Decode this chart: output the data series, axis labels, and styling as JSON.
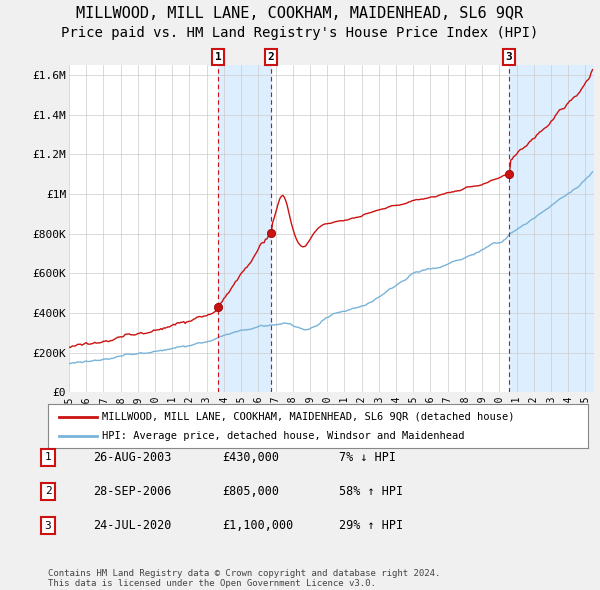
{
  "title": "MILLWOOD, MILL LANE, COOKHAM, MAIDENHEAD, SL6 9QR",
  "subtitle": "Price paid vs. HM Land Registry's House Price Index (HPI)",
  "ylabel_ticks": [
    "£0",
    "£200K",
    "£400K",
    "£600K",
    "£800K",
    "£1M",
    "£1.2M",
    "£1.4M",
    "£1.6M"
  ],
  "ytick_values": [
    0,
    200000,
    400000,
    600000,
    800000,
    1000000,
    1200000,
    1400000,
    1600000
  ],
  "ylim": [
    0,
    1650000
  ],
  "xlim_start": 1995.0,
  "xlim_end": 2025.5,
  "sale_dates": [
    2003.65,
    2006.74,
    2020.55
  ],
  "sale_prices": [
    430000,
    805000,
    1100000
  ],
  "sale_labels": [
    "1",
    "2",
    "3"
  ],
  "hpi_color": "#7ab3d8",
  "price_color": "#cc1111",
  "shade_color": "#ddeeff",
  "legend_price_label": "MILLWOOD, MILL LANE, COOKHAM, MAIDENHEAD, SL6 9QR (detached house)",
  "legend_hpi_label": "HPI: Average price, detached house, Windsor and Maidenhead",
  "table_rows": [
    [
      "1",
      "26-AUG-2003",
      "£430,000",
      "7% ↓ HPI"
    ],
    [
      "2",
      "28-SEP-2006",
      "£805,000",
      "58% ↑ HPI"
    ],
    [
      "3",
      "24-JUL-2020",
      "£1,100,000",
      "29% ↑ HPI"
    ]
  ],
  "footer": "Contains HM Land Registry data © Crown copyright and database right 2024.\nThis data is licensed under the Open Government Licence v3.0.",
  "background_color": "#f0f0f0",
  "plot_bg_color": "#ffffff",
  "title_fontsize": 11,
  "subtitle_fontsize": 10
}
